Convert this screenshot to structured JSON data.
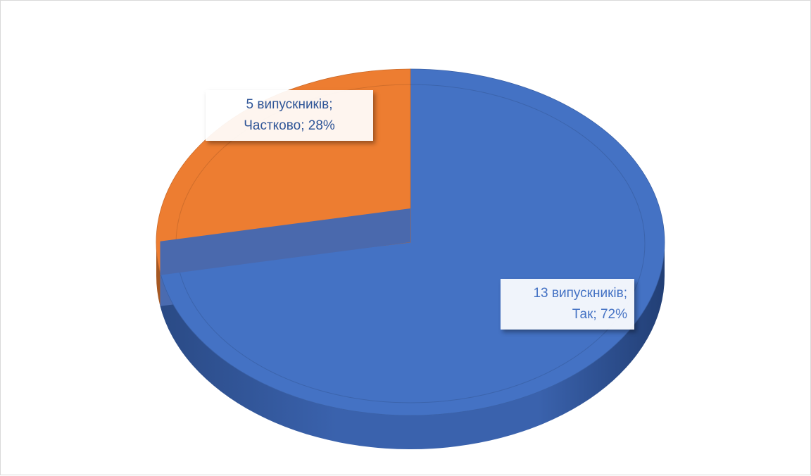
{
  "chart_data": {
    "type": "pie",
    "title": "",
    "three_d": true,
    "slices": [
      {
        "name": "Так",
        "value": 13,
        "percent": "72%",
        "label": "13 випускників; Так; 72%",
        "line1": "13 випускників;",
        "line2": "Так; 72%",
        "color": "#4472c4"
      },
      {
        "name": "Частково",
        "value": 5,
        "percent": "28%",
        "label": "5 випускників; Частково; 28%",
        "line1": "5 випускників;",
        "line2": "Частково; 28%",
        "color": "#ed7d31"
      }
    ],
    "legend": "none",
    "data_labels": "callout"
  }
}
